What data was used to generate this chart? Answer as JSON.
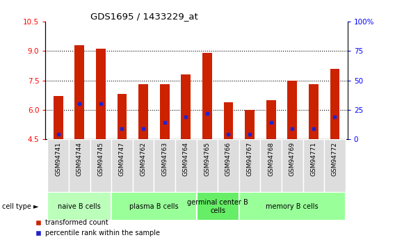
{
  "title": "GDS1695 / 1433229_at",
  "samples": [
    "GSM94741",
    "GSM94744",
    "GSM94745",
    "GSM94747",
    "GSM94762",
    "GSM94763",
    "GSM94764",
    "GSM94765",
    "GSM94766",
    "GSM94767",
    "GSM94768",
    "GSM94769",
    "GSM94771",
    "GSM94772"
  ],
  "transformed_count": [
    6.7,
    9.3,
    9.1,
    6.8,
    7.3,
    7.3,
    7.8,
    8.9,
    6.4,
    6.0,
    6.5,
    7.5,
    7.3,
    8.1
  ],
  "percentile_rank": [
    4.0,
    30.0,
    30.0,
    9.0,
    9.0,
    14.0,
    19.0,
    22.0,
    4.0,
    4.0,
    14.0,
    9.0,
    9.0,
    19.0
  ],
  "ymin": 4.5,
  "ymax": 10.5,
  "yleft_ticks": [
    4.5,
    6.0,
    7.5,
    9.0,
    10.5
  ],
  "yright_ticks": [
    0,
    25,
    50,
    75,
    100
  ],
  "cell_groups": [
    {
      "label": "naive B cells",
      "start": 0,
      "end": 3,
      "color": "#bbffbb"
    },
    {
      "label": "plasma B cells",
      "start": 3,
      "end": 7,
      "color": "#99ff99"
    },
    {
      "label": "germinal center B\ncells",
      "start": 7,
      "end": 9,
      "color": "#66ee66"
    },
    {
      "label": "memory B cells",
      "start": 9,
      "end": 14,
      "color": "#99ff99"
    }
  ],
  "bar_color": "#cc2200",
  "dot_color": "#2222cc",
  "bar_width": 0.45,
  "legend_labels": [
    "transformed count",
    "percentile rank within the sample"
  ],
  "legend_colors": [
    "#cc2200",
    "#2222cc"
  ],
  "xticklabel_bg": "#dddddd"
}
